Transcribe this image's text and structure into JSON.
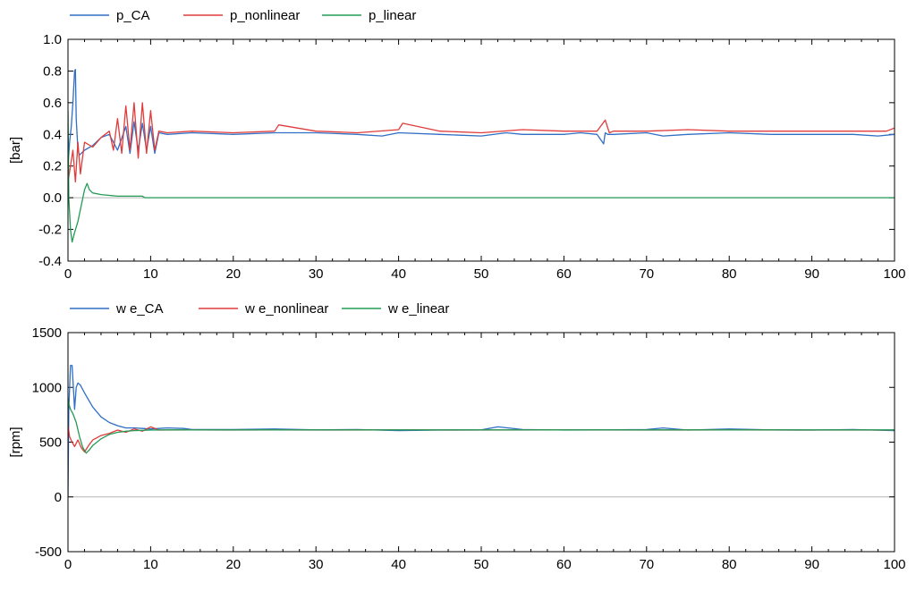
{
  "chart_data": [
    {
      "type": "line",
      "ylabel": "[bar]",
      "xlim": [
        0,
        100
      ],
      "ylim": [
        -0.4,
        1.0
      ],
      "xticks": [
        "0",
        "10",
        "20",
        "30",
        "40",
        "50",
        "60",
        "70",
        "80",
        "90",
        "100"
      ],
      "yticks": [
        "-0.4",
        "-0.2",
        "0.0",
        "0.2",
        "0.4",
        "0.6",
        "0.8",
        "1.0"
      ],
      "grid": true,
      "legend": "top-left",
      "series": [
        {
          "name": "p_CA",
          "color": "#2f6fc4",
          "x": [
            0,
            0.2,
            0.4,
            0.6,
            0.8,
            0.9,
            1.0,
            1.2,
            1.4,
            2,
            3,
            4,
            5,
            6,
            7,
            7.5,
            8,
            8.5,
            9,
            9.5,
            10,
            10.5,
            11,
            12,
            15,
            20,
            25,
            30,
            35,
            38,
            40,
            45,
            50,
            53,
            55,
            60,
            62,
            64,
            64.8,
            65,
            65.3,
            66,
            70,
            72,
            75,
            80,
            85,
            90,
            95,
            98,
            100
          ],
          "y": [
            0.2,
            0.35,
            0.45,
            0.6,
            0.8,
            0.81,
            0.5,
            0.3,
            0.27,
            0.3,
            0.33,
            0.38,
            0.4,
            0.3,
            0.45,
            0.28,
            0.48,
            0.3,
            0.47,
            0.3,
            0.45,
            0.28,
            0.41,
            0.4,
            0.41,
            0.4,
            0.41,
            0.41,
            0.4,
            0.39,
            0.41,
            0.4,
            0.39,
            0.41,
            0.4,
            0.4,
            0.41,
            0.4,
            0.34,
            0.41,
            0.4,
            0.4,
            0.41,
            0.39,
            0.4,
            0.41,
            0.4,
            0.4,
            0.4,
            0.39,
            0.4
          ]
        },
        {
          "name": "p_nonlinear",
          "color": "#e03b3b",
          "x": [
            0,
            0.3,
            0.6,
            0.9,
            1.2,
            1.5,
            2,
            3,
            4,
            5,
            5.5,
            6,
            6.5,
            7,
            7.5,
            8,
            8.5,
            9,
            9.5,
            10,
            10.5,
            11,
            12,
            15,
            20,
            25,
            25.5,
            30,
            35,
            40,
            40.5,
            45,
            50,
            55,
            60,
            64,
            65,
            65.5,
            66,
            70,
            75,
            80,
            85,
            90,
            95,
            99,
            100
          ],
          "y": [
            0.1,
            0.2,
            0.3,
            0.1,
            0.35,
            0.15,
            0.35,
            0.32,
            0.38,
            0.42,
            0.3,
            0.5,
            0.28,
            0.58,
            0.3,
            0.6,
            0.25,
            0.6,
            0.28,
            0.55,
            0.3,
            0.42,
            0.41,
            0.42,
            0.41,
            0.42,
            0.46,
            0.42,
            0.41,
            0.43,
            0.47,
            0.42,
            0.41,
            0.43,
            0.42,
            0.42,
            0.49,
            0.41,
            0.42,
            0.42,
            0.43,
            0.42,
            0.42,
            0.42,
            0.42,
            0.42,
            0.44
          ]
        },
        {
          "name": "p_linear",
          "color": "#239b56",
          "x": [
            0,
            0.1,
            0.3,
            0.5,
            0.8,
            1.2,
            1.6,
            2,
            2.3,
            2.6,
            3,
            4,
            5,
            6,
            7,
            8,
            9,
            9.3,
            10,
            20,
            30,
            40,
            50,
            60,
            70,
            80,
            90,
            100
          ],
          "y": [
            0.55,
            0.0,
            -0.2,
            -0.28,
            -0.22,
            -0.15,
            -0.05,
            0.05,
            0.09,
            0.05,
            0.03,
            0.02,
            0.015,
            0.01,
            0.01,
            0.01,
            0.01,
            0.0,
            0.0,
            0.0,
            0.0,
            0.0,
            0.0,
            0.0,
            0.0,
            0.0,
            0.0,
            0.0
          ]
        }
      ]
    },
    {
      "type": "line",
      "ylabel": "[rpm]",
      "xlim": [
        0,
        100
      ],
      "ylim": [
        -500,
        1500
      ],
      "xticks": [
        "0",
        "10",
        "20",
        "30",
        "40",
        "50",
        "60",
        "70",
        "80",
        "90",
        "100"
      ],
      "yticks": [
        "-500",
        "0",
        "500",
        "1000",
        "1500"
      ],
      "grid": true,
      "legend": "top-left",
      "series": [
        {
          "name": "w e_CA",
          "color": "#2f6fc4",
          "x": [
            0,
            0.1,
            0.3,
            0.5,
            0.8,
            1.0,
            1.2,
            1.5,
            2,
            3,
            4,
            5,
            6,
            7,
            8,
            9,
            10,
            11,
            12,
            14,
            15,
            20,
            25,
            30,
            35,
            40,
            45,
            50,
            52,
            55,
            60,
            65,
            70,
            72,
            75,
            80,
            85,
            90,
            95,
            100
          ],
          "y": [
            0,
            800,
            1200,
            1200,
            800,
            1000,
            1040,
            1020,
            950,
            820,
            730,
            680,
            650,
            630,
            630,
            625,
            620,
            625,
            630,
            625,
            615,
            615,
            620,
            612,
            615,
            605,
            610,
            612,
            640,
            615,
            610,
            612,
            615,
            630,
            610,
            620,
            612,
            610,
            615,
            605
          ]
        },
        {
          "name": "w e_nonlinear",
          "color": "#e03b3b",
          "x": [
            0,
            0.2,
            0.5,
            0.8,
            1.2,
            1.6,
            2,
            2.5,
            3,
            4,
            5,
            6,
            7,
            8,
            9,
            10,
            11,
            15,
            20,
            25,
            30,
            40,
            50,
            60,
            70,
            80,
            90,
            100
          ],
          "y": [
            650,
            550,
            500,
            460,
            520,
            450,
            410,
            470,
            520,
            560,
            580,
            610,
            590,
            620,
            600,
            640,
            610,
            612,
            610,
            612,
            610,
            612,
            610,
            612,
            610,
            612,
            610,
            610
          ]
        },
        {
          "name": "w e_linear",
          "color": "#239b56",
          "x": [
            0,
            0.1,
            0.3,
            0.6,
            1.0,
            1.4,
            1.8,
            2.2,
            2.6,
            3,
            4,
            5,
            6,
            7,
            8,
            9,
            10,
            12,
            15,
            20,
            30,
            40,
            50,
            60,
            70,
            80,
            90,
            100
          ],
          "y": [
            900,
            850,
            800,
            760,
            680,
            550,
            450,
            400,
            430,
            470,
            530,
            570,
            590,
            600,
            605,
            608,
            610,
            612,
            612,
            612,
            612,
            612,
            612,
            612,
            612,
            612,
            612,
            612
          ]
        }
      ]
    }
  ]
}
